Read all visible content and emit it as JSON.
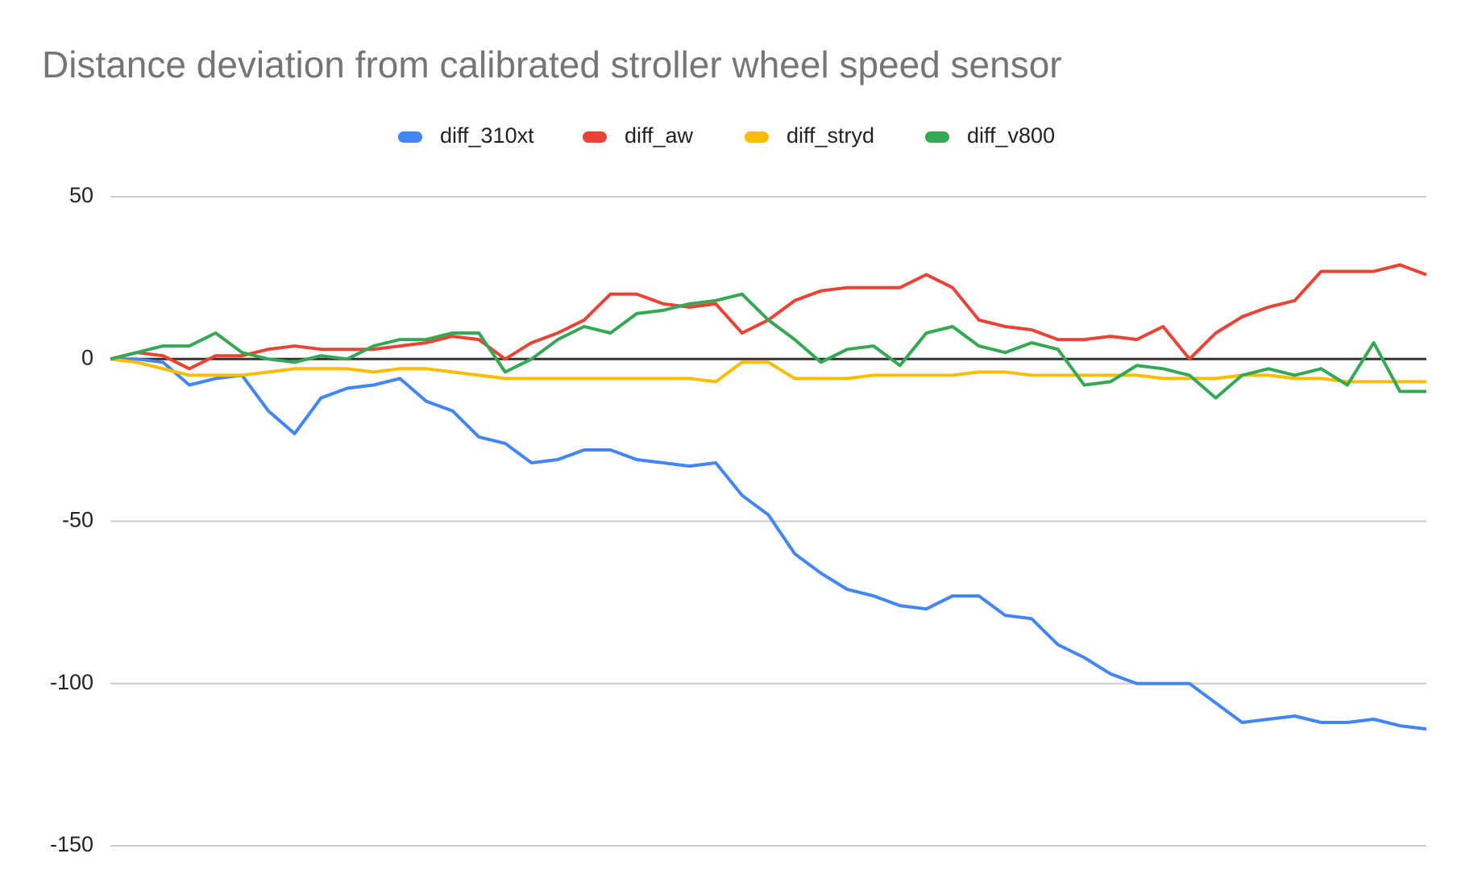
{
  "chart_data": {
    "type": "line",
    "title": "Distance deviation from calibrated stroller wheel speed sensor",
    "ylim": [
      -150,
      50
    ],
    "yticks": [
      -150,
      -100,
      -50,
      0,
      50
    ],
    "grid": true,
    "legend": "top",
    "series": [
      {
        "name": "diff_310xt",
        "color": "#4285f4",
        "values": [
          0,
          0,
          -1,
          -8,
          -6,
          -5,
          -16,
          -23,
          -12,
          -9,
          -8,
          -6,
          -13,
          -16,
          -24,
          -26,
          -32,
          -31,
          -28,
          -28,
          -31,
          -32,
          -33,
          -32,
          -42,
          -48,
          -60,
          -66,
          -71,
          -73,
          -76,
          -77,
          -73,
          -73,
          -79,
          -80,
          -88,
          -92,
          -97,
          -100,
          -100,
          -100,
          -106,
          -112,
          -111,
          -110,
          -112,
          -112,
          -111,
          -113,
          -114
        ]
      },
      {
        "name": "diff_aw",
        "color": "#ea4335",
        "values": [
          0,
          2,
          1,
          -3,
          1,
          1,
          3,
          4,
          3,
          3,
          3,
          4,
          5,
          7,
          6,
          0,
          5,
          8,
          12,
          20,
          20,
          17,
          16,
          17,
          8,
          12,
          18,
          21,
          22,
          22,
          22,
          26,
          22,
          12,
          10,
          9,
          6,
          6,
          7,
          6,
          10,
          0,
          8,
          13,
          16,
          18,
          27,
          27,
          27,
          29,
          26
        ]
      },
      {
        "name": "diff_stryd",
        "color": "#fbbc04",
        "values": [
          0,
          -1,
          -3,
          -5,
          -5,
          -5,
          -4,
          -3,
          -3,
          -3,
          -4,
          -3,
          -3,
          -4,
          -5,
          -6,
          -6,
          -6,
          -6,
          -6,
          -6,
          -6,
          -6,
          -7,
          -1,
          -1,
          -6,
          -6,
          -6,
          -5,
          -5,
          -5,
          -5,
          -4,
          -4,
          -5,
          -5,
          -5,
          -5,
          -5,
          -6,
          -6,
          -6,
          -5,
          -5,
          -6,
          -6,
          -7,
          -7,
          -7,
          -7
        ]
      },
      {
        "name": "diff_v800",
        "color": "#34a853",
        "values": [
          0,
          2,
          4,
          4,
          8,
          2,
          0,
          -1,
          1,
          0,
          4,
          6,
          6,
          8,
          8,
          -4,
          0,
          6,
          10,
          8,
          14,
          15,
          17,
          18,
          20,
          12,
          6,
          -1,
          3,
          4,
          -2,
          8,
          10,
          4,
          2,
          5,
          3,
          -8,
          -7,
          -2,
          -3,
          -5,
          -12,
          -5,
          -3,
          -5,
          -3,
          -8,
          5,
          -10,
          -10
        ]
      }
    ]
  }
}
